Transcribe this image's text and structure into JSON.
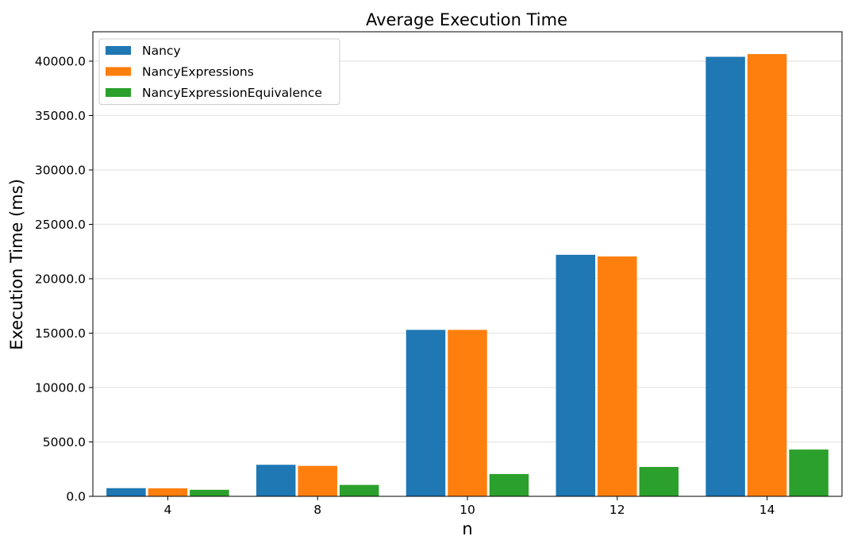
{
  "chart_data": {
    "type": "bar",
    "title": "Average Execution Time",
    "xlabel": "n",
    "ylabel": "Execution Time (ms)",
    "categories": [
      "4",
      "8",
      "10",
      "12",
      "14"
    ],
    "series": [
      {
        "name": "Nancy",
        "color": "#1f77b4",
        "values": [
          750,
          2900,
          15300,
          22200,
          40400
        ]
      },
      {
        "name": "NancyExpressions",
        "color": "#ff7f0e",
        "values": [
          740,
          2800,
          15300,
          22050,
          40650
        ]
      },
      {
        "name": "NancyExpressionEquivalence",
        "color": "#2ca02c",
        "values": [
          600,
          1050,
          2050,
          2700,
          4300
        ]
      }
    ],
    "yticks": [
      0,
      5000,
      10000,
      15000,
      20000,
      25000,
      30000,
      35000,
      40000
    ],
    "ytick_labels": [
      "0.0",
      "5000.0",
      "10000.0",
      "15000.0",
      "20000.0",
      "25000.0",
      "30000.0",
      "35000.0",
      "40000.0"
    ],
    "ylim": [
      0,
      42700
    ],
    "grid": "horizontal",
    "legend_position": "top-left"
  }
}
